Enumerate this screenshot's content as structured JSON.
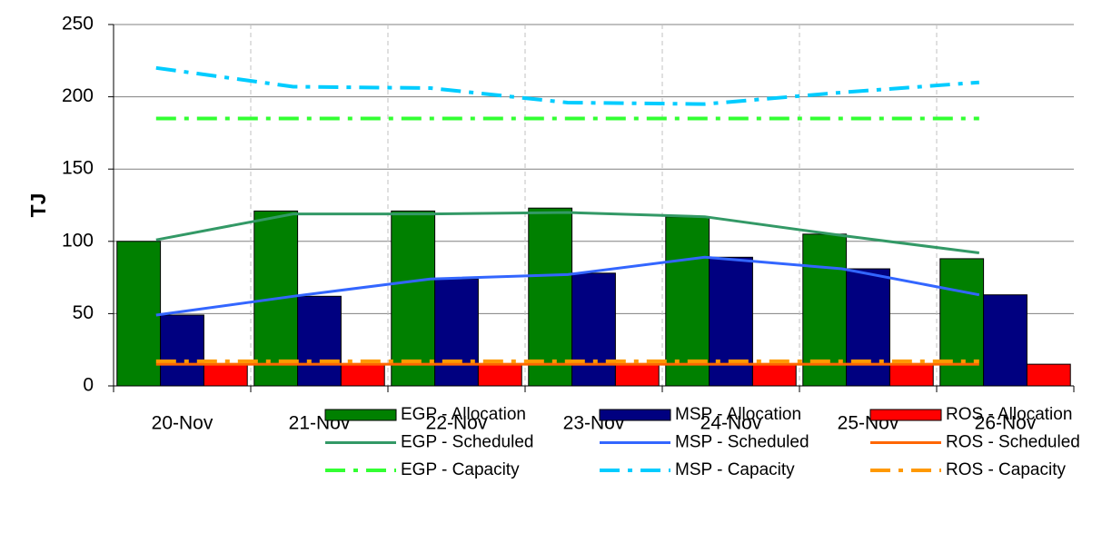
{
  "chart_data": {
    "type": "bar",
    "ylabel": "TJ",
    "categories": [
      "20-Nov",
      "21-Nov",
      "22-Nov",
      "23-Nov",
      "24-Nov",
      "25-Nov",
      "26-Nov"
    ],
    "ylim": [
      0,
      250
    ],
    "yticks": [
      0,
      50,
      100,
      150,
      200,
      250
    ],
    "grid": true,
    "series": [
      {
        "name": "EGP - Allocation",
        "kind": "bar",
        "color": "#008000",
        "values": [
          100,
          121,
          121,
          123,
          117,
          105,
          88
        ]
      },
      {
        "name": "MSP - Allocation",
        "kind": "bar",
        "color": "#000080",
        "values": [
          49,
          62,
          74,
          78,
          89,
          81,
          63
        ]
      },
      {
        "name": "ROS - Allocation",
        "kind": "bar",
        "color": "#ff0000",
        "values": [
          15,
          15,
          15,
          15,
          15,
          15,
          15
        ]
      },
      {
        "name": "EGP - Scheduled",
        "kind": "line",
        "style": "solid",
        "color": "#339966",
        "values": [
          101,
          119,
          119,
          120,
          117,
          104,
          92
        ]
      },
      {
        "name": "MSP - Scheduled",
        "kind": "line",
        "style": "solid",
        "color": "#3366ff",
        "values": [
          49,
          62,
          74,
          77,
          89,
          81,
          63
        ]
      },
      {
        "name": "ROS - Scheduled",
        "kind": "line",
        "style": "solid",
        "color": "#ff6600",
        "values": [
          15,
          15,
          15,
          15,
          15,
          15,
          15
        ]
      },
      {
        "name": "EGP - Capacity",
        "kind": "line",
        "style": "dashdot",
        "color": "#33ff33",
        "values": [
          185,
          185,
          185,
          185,
          185,
          185,
          185
        ]
      },
      {
        "name": "MSP - Capacity",
        "kind": "line",
        "style": "dashdot",
        "color": "#00ccff",
        "values": [
          220,
          207,
          206,
          196,
          195,
          203,
          210
        ]
      },
      {
        "name": "ROS - Capacity",
        "kind": "line",
        "style": "dashdot",
        "color": "#ff9900",
        "values": [
          17,
          17,
          17,
          17,
          17,
          17,
          17
        ]
      }
    ]
  }
}
